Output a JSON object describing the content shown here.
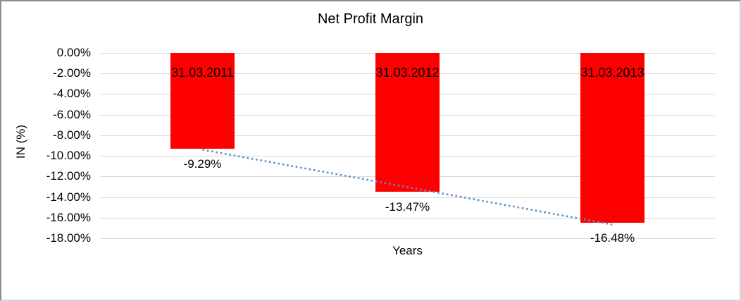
{
  "chart_data": {
    "type": "bar",
    "title": "Net Profit Margin",
    "xlabel": "Years",
    "ylabel": "IN (%)",
    "categories": [
      "31.03.2011",
      "31.03.2012",
      "31.03.2013"
    ],
    "series": [
      {
        "name": "Net Profit Margin",
        "values": [
          -9.29,
          -13.47,
          -16.48
        ]
      }
    ],
    "data_labels": [
      "-9.29%",
      "-13.47%",
      "-16.48%"
    ],
    "y_axis": {
      "max": 0,
      "min": -18,
      "step": 2,
      "tick_labels": [
        "0.00%",
        "-2.00%",
        "-4.00%",
        "-6.00%",
        "-8.00%",
        "-10.00%",
        "-12.00%",
        "-14.00%",
        "-16.00%",
        "-18.00%"
      ]
    },
    "grid": true,
    "legend": "none",
    "colors": {
      "bar": "#FF0000",
      "gridline": "#D9D9D9",
      "trendline": "#5B8DC6",
      "text": "#000000"
    },
    "trendline": {
      "type": "linear",
      "style": "dotted",
      "start_value": -9.4,
      "end_value": -16.67
    }
  }
}
